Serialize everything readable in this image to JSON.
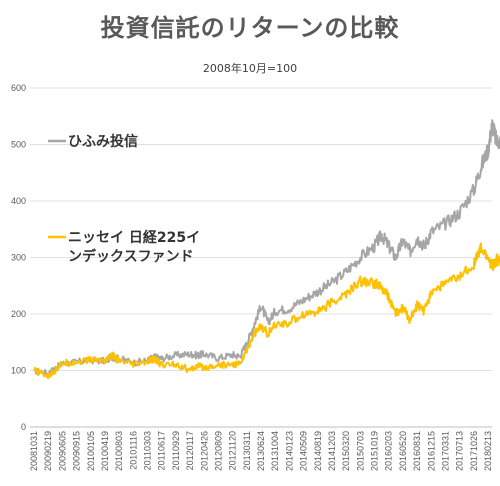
{
  "chart_data": {
    "type": "line",
    "title": "投資信託のリターンの比較",
    "subtitle": "2008年10月=100",
    "ylim": [
      0,
      600
    ],
    "yticks": [
      0,
      100,
      200,
      300,
      400,
      500,
      600
    ],
    "x_tick_labels": [
      "20081031",
      "20090219",
      "20090605",
      "20090915",
      "20100105",
      "20100419",
      "20100803",
      "20101116",
      "20110303",
      "20110617",
      "20110929",
      "20120117",
      "20120426",
      "20120809",
      "20121120",
      "20130311",
      "20130624",
      "20131004",
      "20140123",
      "20140509",
      "20140819",
      "20141203",
      "20150320",
      "20150703",
      "20151019",
      "20160203",
      "20160520",
      "20160831",
      "20161215",
      "20170331",
      "20170713",
      "20171026",
      "20180213"
    ],
    "grid": "horizontal",
    "series": [
      {
        "name": "ひふみ投信",
        "color": "#a6a6a6",
        "legend_lines": [
          "ひふみ投信"
        ],
        "points": [
          [
            0,
            100
          ],
          [
            1,
            95
          ],
          [
            1.5,
            104
          ],
          [
            2,
            112
          ],
          [
            3,
            115
          ],
          [
            4,
            118
          ],
          [
            5,
            117
          ],
          [
            5.5,
            124
          ],
          [
            6,
            121
          ],
          [
            7,
            114
          ],
          [
            8,
            118
          ],
          [
            8.5,
            124
          ],
          [
            9,
            121
          ],
          [
            10,
            127
          ],
          [
            11,
            129
          ],
          [
            11.5,
            127
          ],
          [
            12,
            129
          ],
          [
            13,
            122
          ],
          [
            14,
            128
          ],
          [
            14.5,
            125
          ],
          [
            15,
            148
          ],
          [
            15.5,
            180
          ],
          [
            16,
            215
          ],
          [
            16.5,
            185
          ],
          [
            17,
            205
          ],
          [
            18,
            210
          ],
          [
            19,
            225
          ],
          [
            20,
            240
          ],
          [
            21,
            255
          ],
          [
            22,
            275
          ],
          [
            23,
            300
          ],
          [
            24,
            320
          ],
          [
            24.5,
            340
          ],
          [
            25,
            320
          ],
          [
            25.5,
            300
          ],
          [
            26,
            330
          ],
          [
            26.5,
            310
          ],
          [
            27,
            335
          ],
          [
            27.5,
            320
          ],
          [
            28,
            345
          ],
          [
            29,
            360
          ],
          [
            30,
            380
          ],
          [
            31,
            420
          ],
          [
            31.5,
            460
          ],
          [
            32,
            490
          ],
          [
            32.3,
            535
          ],
          [
            32.6,
            505
          ],
          [
            33,
            508
          ]
        ]
      },
      {
        "name": "ニッセイ 日経225インデックスファンド",
        "color": "#ffc000",
        "legend_lines": [
          "ニッセイ 日経225イ",
          "ンデックスファンド"
        ],
        "points": [
          [
            0,
            100
          ],
          [
            1,
            90
          ],
          [
            1.5,
            100
          ],
          [
            2,
            113
          ],
          [
            3,
            115
          ],
          [
            4,
            119
          ],
          [
            5,
            118
          ],
          [
            5.5,
            127
          ],
          [
            6,
            116
          ],
          [
            7,
            110
          ],
          [
            8,
            115
          ],
          [
            8.5,
            120
          ],
          [
            9,
            110
          ],
          [
            10,
            112
          ],
          [
            11,
            100
          ],
          [
            11.5,
            108
          ],
          [
            12,
            105
          ],
          [
            13,
            110
          ],
          [
            14,
            110
          ],
          [
            14.5,
            112
          ],
          [
            15,
            135
          ],
          [
            15.5,
            165
          ],
          [
            16,
            178
          ],
          [
            16.5,
            165
          ],
          [
            17,
            180
          ],
          [
            18,
            185
          ],
          [
            19,
            200
          ],
          [
            20,
            205
          ],
          [
            21,
            220
          ],
          [
            22,
            235
          ],
          [
            23,
            258
          ],
          [
            24,
            255
          ],
          [
            24.5,
            245
          ],
          [
            25,
            230
          ],
          [
            25.5,
            200
          ],
          [
            26,
            210
          ],
          [
            26.5,
            190
          ],
          [
            27,
            215
          ],
          [
            27.5,
            205
          ],
          [
            28,
            240
          ],
          [
            29,
            255
          ],
          [
            30,
            265
          ],
          [
            31,
            290
          ],
          [
            31.5,
            315
          ],
          [
            32,
            300
          ],
          [
            32.3,
            285
          ],
          [
            32.6,
            295
          ],
          [
            33,
            300
          ]
        ]
      }
    ]
  }
}
